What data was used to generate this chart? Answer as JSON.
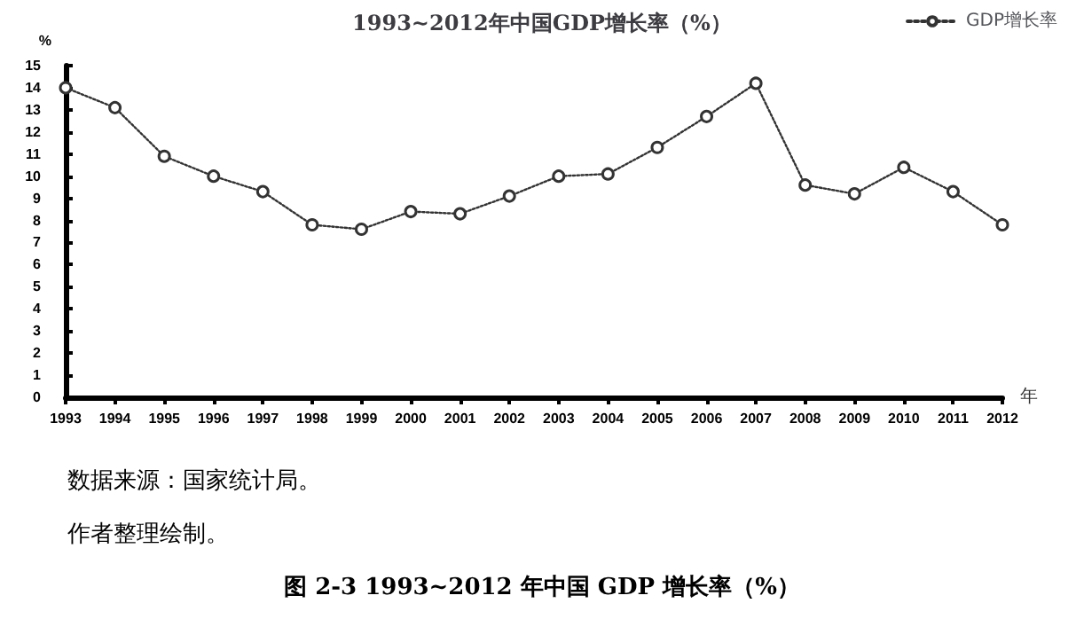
{
  "chart_data": {
    "type": "line",
    "title": "1993~2012年中国GDP增长率（%）",
    "ylabel": "%",
    "xlabel": "年",
    "categories": [
      "1993",
      "1994",
      "1995",
      "1996",
      "1997",
      "1998",
      "1999",
      "2000",
      "2001",
      "2002",
      "2003",
      "2004",
      "2005",
      "2006",
      "2007",
      "2008",
      "2009",
      "2010",
      "2011",
      "2012"
    ],
    "series": [
      {
        "name": "GDP增长率",
        "color": "#333333",
        "values": [
          14.0,
          13.1,
          10.9,
          10.0,
          9.3,
          7.8,
          7.6,
          8.4,
          8.3,
          9.1,
          10.0,
          10.1,
          11.3,
          12.7,
          14.2,
          9.6,
          9.2,
          10.4,
          9.3,
          7.8
        ]
      }
    ],
    "ylim": [
      0,
      15
    ],
    "yticks": [
      0,
      1,
      2,
      3,
      4,
      5,
      6,
      7,
      8,
      9,
      10,
      11,
      12,
      13,
      14,
      15
    ],
    "grid": false,
    "legend": "top right",
    "marker": "circle",
    "line_style": "dotted",
    "annotations": [
      "数据来源：国家统计局。",
      "作者整理绘制。",
      "图 2-3 1993~2012 年中国 GDP 增长率（%）"
    ]
  }
}
